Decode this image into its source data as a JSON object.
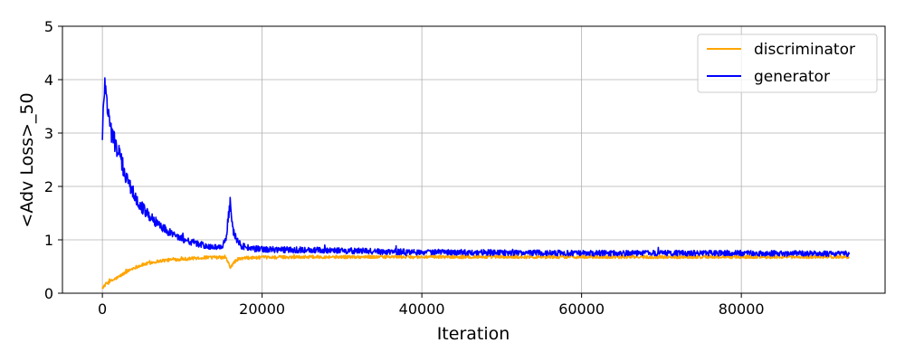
{
  "chart_data": {
    "type": "line",
    "title": "",
    "xlabel": "Iteration",
    "ylabel": "<Adv Loss>_50",
    "xlim": [
      -5000,
      98000
    ],
    "ylim": [
      0,
      5
    ],
    "xticks": [
      0,
      20000,
      40000,
      60000,
      80000
    ],
    "xtick_labels": [
      "0",
      "20000",
      "40000",
      "60000",
      "80000"
    ],
    "yticks": [
      0,
      1,
      2,
      3,
      4,
      5
    ],
    "ytick_labels": [
      "0",
      "1",
      "2",
      "3",
      "4",
      "5"
    ],
    "grid": true,
    "legend_position": "top-right",
    "series": [
      {
        "name": "discriminator",
        "color": "#ffa500",
        "x": [
          0,
          500,
          1000,
          2000,
          3000,
          4000,
          5000,
          6000,
          7000,
          8000,
          9000,
          10000,
          11000,
          12000,
          13000,
          14000,
          15000,
          15500,
          16000,
          16500,
          17000,
          18000,
          20000,
          25000,
          30000,
          40000,
          50000,
          60000,
          70000,
          80000,
          90000,
          93500
        ],
        "y": [
          0.1,
          0.18,
          0.22,
          0.3,
          0.4,
          0.48,
          0.53,
          0.57,
          0.6,
          0.62,
          0.63,
          0.64,
          0.65,
          0.66,
          0.67,
          0.67,
          0.67,
          0.66,
          0.48,
          0.58,
          0.64,
          0.66,
          0.67,
          0.68,
          0.68,
          0.68,
          0.68,
          0.68,
          0.68,
          0.68,
          0.68,
          0.68
        ]
      },
      {
        "name": "generator",
        "color": "#0000ff",
        "x": [
          0,
          200,
          400,
          700,
          1000,
          1500,
          2000,
          2500,
          3000,
          4000,
          5000,
          6000,
          7000,
          8000,
          9000,
          10000,
          11000,
          12000,
          13000,
          14000,
          15000,
          15500,
          15800,
          16000,
          16300,
          16800,
          17500,
          18500,
          20000,
          25000,
          30000,
          35000,
          40000,
          50000,
          60000,
          70000,
          80000,
          90000,
          93500
        ],
        "y": [
          2.85,
          3.8,
          4.0,
          3.4,
          3.1,
          2.85,
          2.65,
          2.4,
          2.15,
          1.85,
          1.6,
          1.42,
          1.3,
          1.18,
          1.1,
          1.02,
          0.97,
          0.92,
          0.88,
          0.86,
          0.85,
          1.05,
          1.45,
          1.68,
          1.2,
          0.98,
          0.88,
          0.84,
          0.82,
          0.81,
          0.8,
          0.78,
          0.77,
          0.76,
          0.75,
          0.75,
          0.75,
          0.74,
          0.74
        ]
      }
    ]
  }
}
